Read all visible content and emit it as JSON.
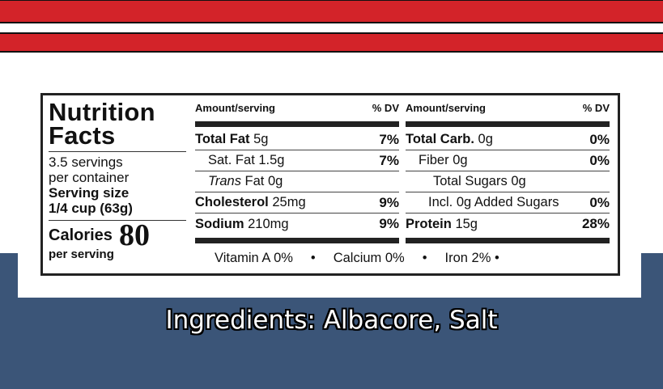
{
  "label": {
    "title_line1": "Nutrition",
    "title_line2": "Facts",
    "servings_line1": "3.5 servings",
    "servings_line2": "per container",
    "serving_size_label": "Serving size",
    "serving_size_value": "1/4 cup (63g)",
    "calories_label": "Calories",
    "calories_value": "80",
    "per_serving": "per serving",
    "left_col": {
      "amount_header": "Amount/serving",
      "dv_header": "% DV",
      "rows": [
        {
          "name": "Total Fat",
          "amount": "5g",
          "dv": "7%"
        },
        {
          "name": "Sat. Fat",
          "amount": "1.5g",
          "dv": "7%"
        },
        {
          "name": "Trans",
          "amount": "Fat 0g",
          "dv": ""
        },
        {
          "name": "Cholesterol",
          "amount": "25mg",
          "dv": "9%"
        },
        {
          "name": "Sodium",
          "amount": "210mg",
          "dv": "9%"
        }
      ]
    },
    "right_col": {
      "amount_header": "Amount/serving",
      "dv_header": "% DV",
      "rows": [
        {
          "name": "Total Carb.",
          "amount": "0g",
          "dv": "0%"
        },
        {
          "name": "Fiber",
          "amount": "0g",
          "dv": "0%"
        },
        {
          "name": "Total Sugars",
          "amount": "0g",
          "dv": ""
        },
        {
          "name": "Incl. 0g Added Sugars",
          "amount": "",
          "dv": "0%"
        },
        {
          "name": "Protein",
          "amount": "15g",
          "dv": "28%"
        }
      ]
    },
    "vitamins": [
      "Vitamin A 0%",
      "•",
      "Calcium 0%",
      "•",
      "Iron 2% •"
    ]
  },
  "ingredients": "Ingredients: Albacore, Salt",
  "colors": {
    "red": "#d32329",
    "blue": "#3b5578"
  }
}
